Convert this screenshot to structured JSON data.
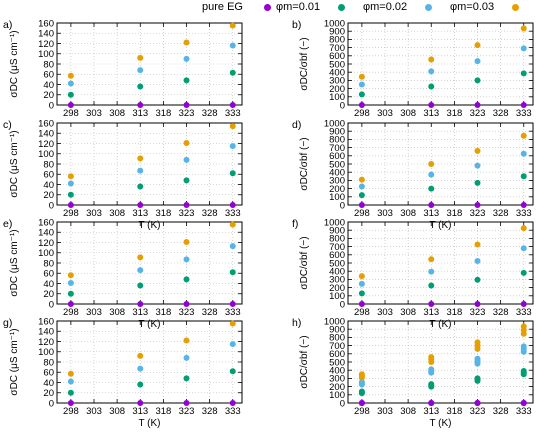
{
  "legend": {
    "items": [
      {
        "label": "pure EG",
        "color": "#9400d3"
      },
      {
        "label": "φm=0.01",
        "color": "#009e73"
      },
      {
        "label": "φm=0.02",
        "color": "#56b4e9"
      },
      {
        "label": "φm=0.03",
        "color": "#e69f00"
      }
    ]
  },
  "chart_data": [
    {
      "panel": "a)",
      "type": "scatter",
      "ylabel": "σDC (μS cm⁻¹)",
      "xlabel": "",
      "ylim": [
        0,
        160
      ],
      "yticks": [
        0,
        20,
        40,
        60,
        80,
        100,
        120,
        140,
        160
      ],
      "xlim": [
        295,
        335
      ],
      "xticks": [
        298,
        303,
        308,
        313,
        318,
        323,
        328,
        333
      ],
      "series": [
        {
          "name": "pure EG",
          "x": [
            298,
            313,
            323,
            333
          ],
          "y": [
            0,
            0,
            0,
            0
          ]
        },
        {
          "name": "φm=0.01",
          "x": [
            298,
            313,
            323,
            333
          ],
          "y": [
            20,
            36,
            48,
            63
          ]
        },
        {
          "name": "φm=0.02",
          "x": [
            298,
            313,
            323,
            333
          ],
          "y": [
            42,
            68,
            90,
            116
          ]
        },
        {
          "name": "φm=0.03",
          "x": [
            298,
            313,
            323,
            333
          ],
          "y": [
            57,
            92,
            122,
            155
          ]
        }
      ]
    },
    {
      "panel": "b)",
      "type": "scatter",
      "ylabel": "σDC/σbf (−)",
      "xlabel": "",
      "ylim": [
        0,
        1000
      ],
      "yticks": [
        0,
        100,
        200,
        300,
        400,
        500,
        600,
        700,
        800,
        900,
        1000
      ],
      "xlim": [
        295,
        335
      ],
      "xticks": [
        298,
        303,
        308,
        313,
        318,
        323,
        328,
        333
      ],
      "series": [
        {
          "name": "pure EG",
          "x": [
            298,
            313,
            323,
            333
          ],
          "y": [
            0,
            0,
            0,
            0
          ]
        },
        {
          "name": "φm=0.01",
          "x": [
            298,
            313,
            323,
            333
          ],
          "y": [
            130,
            225,
            300,
            385
          ]
        },
        {
          "name": "φm=0.02",
          "x": [
            298,
            313,
            323,
            333
          ],
          "y": [
            250,
            410,
            535,
            690
          ]
        },
        {
          "name": "φm=0.03",
          "x": [
            298,
            313,
            323,
            333
          ],
          "y": [
            345,
            555,
            730,
            935
          ]
        }
      ]
    },
    {
      "panel": "c)",
      "type": "scatter",
      "ylabel": "σDC (μS cm⁻¹)",
      "xlabel": "T (K)",
      "ylim": [
        0,
        160
      ],
      "yticks": [
        0,
        20,
        40,
        60,
        80,
        100,
        120,
        140,
        160
      ],
      "xlim": [
        295,
        335
      ],
      "xticks": [
        298,
        303,
        308,
        313,
        318,
        323,
        328,
        333
      ],
      "series": [
        {
          "name": "pure EG",
          "x": [
            298,
            313,
            323,
            333
          ],
          "y": [
            0,
            0,
            0,
            0
          ]
        },
        {
          "name": "φm=0.01",
          "x": [
            298,
            313,
            323,
            333
          ],
          "y": [
            20,
            36,
            48,
            62
          ]
        },
        {
          "name": "φm=0.02",
          "x": [
            298,
            313,
            323,
            333
          ],
          "y": [
            42,
            67,
            88,
            115
          ]
        },
        {
          "name": "φm=0.03",
          "x": [
            298,
            313,
            323,
            333
          ],
          "y": [
            56,
            91,
            121,
            154
          ]
        }
      ]
    },
    {
      "panel": "d)",
      "type": "scatter",
      "ylabel": "σDC/σbf (−)",
      "xlabel": "T (K)",
      "ylim": [
        0,
        1000
      ],
      "yticks": [
        0,
        100,
        200,
        300,
        400,
        500,
        600,
        700,
        800,
        900,
        1000
      ],
      "xlim": [
        295,
        335
      ],
      "xticks": [
        298,
        303,
        308,
        313,
        318,
        323,
        328,
        333
      ],
      "series": [
        {
          "name": "pure EG",
          "x": [
            298,
            313,
            323,
            333
          ],
          "y": [
            0,
            0,
            0,
            0
          ]
        },
        {
          "name": "φm=0.01",
          "x": [
            298,
            313,
            323,
            333
          ],
          "y": [
            120,
            200,
            270,
            350
          ]
        },
        {
          "name": "φm=0.02",
          "x": [
            298,
            313,
            323,
            333
          ],
          "y": [
            225,
            370,
            480,
            625
          ]
        },
        {
          "name": "φm=0.03",
          "x": [
            298,
            313,
            323,
            333
          ],
          "y": [
            310,
            500,
            660,
            845
          ]
        }
      ]
    },
    {
      "panel": "e)",
      "type": "scatter",
      "ylabel": "σDC (μS cm⁻¹)",
      "xlabel": "T (K)",
      "ylim": [
        0,
        160
      ],
      "yticks": [
        0,
        20,
        40,
        60,
        80,
        100,
        120,
        140,
        160
      ],
      "xlim": [
        295,
        335
      ],
      "xticks": [
        298,
        303,
        308,
        313,
        318,
        323,
        328,
        333
      ],
      "series": [
        {
          "name": "pure EG",
          "x": [
            298,
            313,
            323,
            333
          ],
          "y": [
            0,
            0,
            0,
            0
          ]
        },
        {
          "name": "φm=0.01",
          "x": [
            298,
            313,
            323,
            333
          ],
          "y": [
            20,
            36,
            48,
            62
          ]
        },
        {
          "name": "φm=0.02",
          "x": [
            298,
            313,
            323,
            333
          ],
          "y": [
            41,
            66,
            87,
            113
          ]
        },
        {
          "name": "φm=0.03",
          "x": [
            298,
            313,
            323,
            333
          ],
          "y": [
            56,
            91,
            121,
            155
          ]
        }
      ]
    },
    {
      "panel": "f)",
      "type": "scatter",
      "ylabel": "σDC/σbf (−)",
      "xlabel": "T (K)",
      "ylim": [
        0,
        1000
      ],
      "yticks": [
        0,
        100,
        200,
        300,
        400,
        500,
        600,
        700,
        800,
        900,
        1000
      ],
      "xlim": [
        295,
        335
      ],
      "xticks": [
        298,
        303,
        308,
        313,
        318,
        323,
        328,
        333
      ],
      "series": [
        {
          "name": "pure EG",
          "x": [
            298,
            313,
            323,
            333
          ],
          "y": [
            0,
            0,
            0,
            0
          ]
        },
        {
          "name": "φm=0.01",
          "x": [
            298,
            313,
            323,
            333
          ],
          "y": [
            130,
            225,
            295,
            380
          ]
        },
        {
          "name": "φm=0.02",
          "x": [
            298,
            313,
            323,
            333
          ],
          "y": [
            245,
            395,
            525,
            680
          ]
        },
        {
          "name": "φm=0.03",
          "x": [
            298,
            313,
            323,
            333
          ],
          "y": [
            340,
            545,
            725,
            925
          ]
        }
      ]
    },
    {
      "panel": "g)",
      "type": "scatter",
      "ylabel": "σDC (μS cm⁻¹)",
      "xlabel": "T (K)",
      "ylim": [
        0,
        160
      ],
      "yticks": [
        0,
        20,
        40,
        60,
        80,
        100,
        120,
        140,
        160
      ],
      "xlim": [
        295,
        335
      ],
      "xticks": [
        298,
        303,
        308,
        313,
        318,
        323,
        328,
        333
      ],
      "series": [
        {
          "name": "pure EG",
          "x": [
            298,
            313,
            323,
            333
          ],
          "y": [
            0,
            0,
            0,
            0
          ]
        },
        {
          "name": "φm=0.01",
          "x": [
            298,
            313,
            323,
            333
          ],
          "y": [
            20,
            36,
            48,
            62
          ]
        },
        {
          "name": "φm=0.02",
          "x": [
            298,
            313,
            323,
            333
          ],
          "y": [
            42,
            67,
            88,
            115
          ]
        },
        {
          "name": "φm=0.03",
          "x": [
            298,
            313,
            323,
            333
          ],
          "y": [
            57,
            92,
            122,
            155
          ]
        }
      ]
    },
    {
      "panel": "h)",
      "type": "scatter",
      "ylabel": "σDC/σbf (−)",
      "xlabel": "T (K)",
      "ylim": [
        0,
        1000
      ],
      "yticks": [
        0,
        100,
        200,
        300,
        400,
        500,
        600,
        700,
        800,
        900,
        1000
      ],
      "xlim": [
        295,
        335
      ],
      "xticks": [
        298,
        303,
        308,
        313,
        318,
        323,
        328,
        333
      ],
      "series": [
        {
          "name": "pure EG",
          "x": [
            298,
            298,
            298,
            313,
            313,
            313,
            323,
            323,
            323,
            333,
            333,
            333
          ],
          "y": [
            0,
            0,
            0,
            0,
            0,
            0,
            0,
            0,
            0,
            0,
            0,
            0
          ]
        },
        {
          "name": "φm=0.01",
          "x": [
            298,
            298,
            298,
            313,
            313,
            313,
            323,
            323,
            323,
            333,
            333,
            333
          ],
          "y": [
            120,
            130,
            140,
            200,
            215,
            230,
            270,
            285,
            300,
            350,
            370,
            390
          ]
        },
        {
          "name": "φm=0.02",
          "x": [
            298,
            298,
            298,
            313,
            313,
            313,
            323,
            323,
            323,
            333,
            333,
            333
          ],
          "y": [
            225,
            240,
            255,
            370,
            390,
            410,
            480,
            510,
            540,
            625,
            655,
            690
          ]
        },
        {
          "name": "φm=0.03",
          "x": [
            298,
            298,
            298,
            313,
            313,
            313,
            323,
            323,
            323,
            333,
            333,
            333
          ],
          "y": [
            310,
            330,
            350,
            500,
            530,
            560,
            660,
            700,
            740,
            845,
            890,
            935
          ]
        }
      ]
    }
  ]
}
